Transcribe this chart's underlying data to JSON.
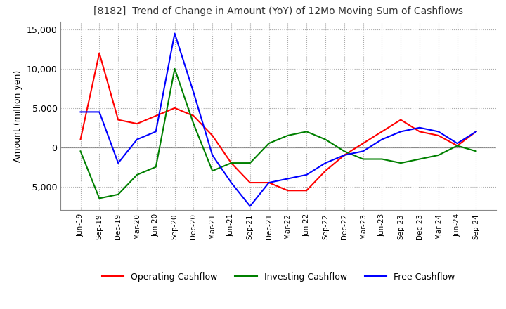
{
  "title": "[8182]  Trend of Change in Amount (YoY) of 12Mo Moving Sum of Cashflows",
  "ylabel": "Amount (million yen)",
  "x_labels": [
    "Jun-19",
    "Sep-19",
    "Dec-19",
    "Mar-20",
    "Jun-20",
    "Sep-20",
    "Dec-20",
    "Mar-21",
    "Jun-21",
    "Sep-21",
    "Dec-21",
    "Mar-22",
    "Jun-22",
    "Sep-22",
    "Dec-22",
    "Mar-23",
    "Jun-23",
    "Sep-23",
    "Dec-23",
    "Mar-24",
    "Jun-24",
    "Sep-24"
  ],
  "operating_cashflow": [
    1000,
    12000,
    3500,
    3000,
    4000,
    5000,
    4000,
    1500,
    -2000,
    -4500,
    -4500,
    -5500,
    -5500,
    -3000,
    -1000,
    500,
    2000,
    3500,
    2000,
    1500,
    200,
    2000
  ],
  "investing_cashflow": [
    -500,
    -6500,
    -6000,
    -3500,
    -2500,
    10000,
    3000,
    -3000,
    -2000,
    -2000,
    500,
    1500,
    2000,
    1000,
    -500,
    -1500,
    -1500,
    -2000,
    -1500,
    -1000,
    200,
    -500
  ],
  "free_cashflow": [
    4500,
    4500,
    -2000,
    1000,
    2000,
    14500,
    7000,
    -1000,
    -4500,
    -7500,
    -4500,
    -4000,
    -3500,
    -2000,
    -1000,
    -500,
    1000,
    2000,
    2500,
    2000,
    500,
    2000
  ],
  "operating_color": "#ff0000",
  "investing_color": "#008000",
  "free_color": "#0000ff",
  "ylim": [
    -8000,
    16000
  ],
  "yticks": [
    -5000,
    0,
    5000,
    10000,
    15000
  ],
  "background_color": "#ffffff",
  "grid_color": "#aaaaaa"
}
